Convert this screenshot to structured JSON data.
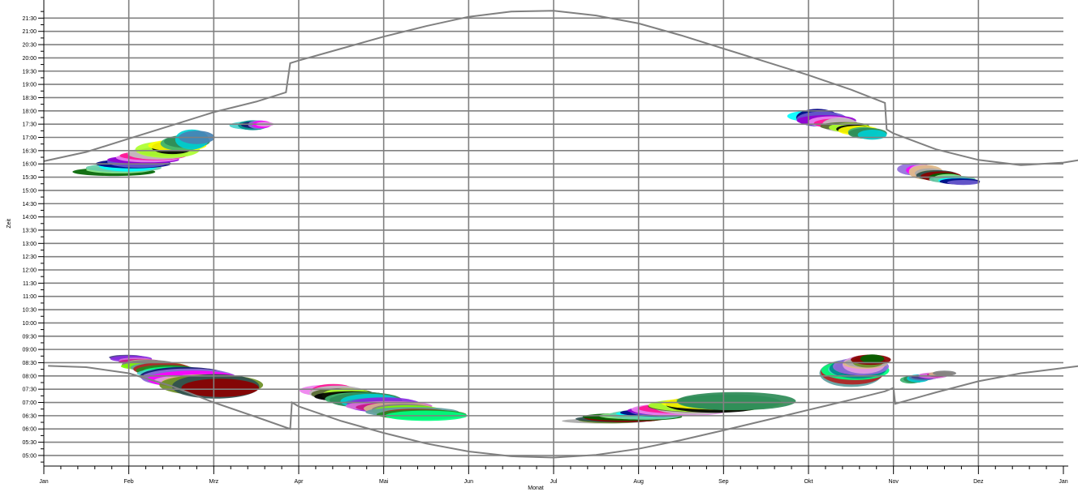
{
  "chart_data": {
    "type": "scatter",
    "title": "",
    "xlabel": "Monat",
    "ylabel": "Zeit",
    "x_ticks": [
      "Jan",
      "Feb",
      "Mrz",
      "Apr",
      "Mai",
      "Jun",
      "Jul",
      "Aug",
      "Sep",
      "Okt",
      "Nov",
      "Dez",
      "Jan"
    ],
    "y_ticks": [
      "05:00",
      "05:30",
      "06:00",
      "06:30",
      "07:00",
      "07:30",
      "08:00",
      "08:30",
      "09:00",
      "09:30",
      "10:00",
      "10:30",
      "11:00",
      "11:30",
      "12:00",
      "12:30",
      "13:00",
      "13:30",
      "14:00",
      "14:30",
      "15:00",
      "15:30",
      "16:00",
      "16:30",
      "17:00",
      "17:30",
      "18:00",
      "18:30",
      "19:00",
      "19:30",
      "20:00",
      "20:30",
      "21:00",
      "21:30"
    ],
    "xlim_months": [
      0,
      12
    ],
    "ylim_hours": [
      4.6,
      22.0
    ],
    "grid": true,
    "legend": "none",
    "grid_color": "#808080",
    "sunrise_line": {
      "name": "",
      "color": "#808080",
      "points": [
        [
          0.05,
          8.38
        ],
        [
          0.5,
          8.33
        ],
        [
          1.0,
          8.1
        ],
        [
          1.5,
          7.62
        ],
        [
          2.0,
          7.0
        ],
        [
          2.5,
          6.45
        ],
        [
          2.9,
          6.0
        ],
        [
          2.92,
          7.0
        ],
        [
          3.0,
          6.85
        ],
        [
          3.5,
          6.3
        ],
        [
          4.0,
          5.85
        ],
        [
          4.5,
          5.45
        ],
        [
          5.0,
          5.15
        ],
        [
          5.5,
          4.97
        ],
        [
          6.0,
          4.92
        ],
        [
          6.5,
          5.02
        ],
        [
          7.0,
          5.25
        ],
        [
          7.5,
          5.58
        ],
        [
          8.0,
          5.95
        ],
        [
          8.5,
          6.33
        ],
        [
          9.0,
          6.72
        ],
        [
          9.5,
          7.1
        ],
        [
          9.9,
          7.42
        ],
        [
          10.0,
          7.55
        ],
        [
          10.02,
          6.95
        ],
        [
          10.5,
          7.38
        ],
        [
          11.0,
          7.8
        ],
        [
          11.5,
          8.1
        ],
        [
          12.0,
          8.3
        ],
        [
          12.2,
          8.38
        ]
      ]
    },
    "sunset_line": {
      "name": "",
      "color": "#808080",
      "points": [
        [
          0.0,
          16.1
        ],
        [
          0.5,
          16.45
        ],
        [
          1.0,
          16.95
        ],
        [
          1.5,
          17.45
        ],
        [
          2.0,
          17.95
        ],
        [
          2.5,
          18.35
        ],
        [
          2.85,
          18.7
        ],
        [
          2.9,
          19.8
        ],
        [
          3.0,
          19.9
        ],
        [
          3.5,
          20.35
        ],
        [
          4.0,
          20.8
        ],
        [
          4.5,
          21.2
        ],
        [
          5.0,
          21.55
        ],
        [
          5.5,
          21.75
        ],
        [
          6.0,
          21.78
        ],
        [
          6.5,
          21.6
        ],
        [
          7.0,
          21.3
        ],
        [
          7.5,
          20.85
        ],
        [
          8.0,
          20.35
        ],
        [
          8.5,
          19.85
        ],
        [
          9.0,
          19.35
        ],
        [
          9.5,
          18.8
        ],
        [
          9.9,
          18.3
        ],
        [
          9.92,
          17.3
        ],
        [
          10.0,
          17.15
        ],
        [
          10.5,
          16.55
        ],
        [
          11.0,
          16.15
        ],
        [
          11.5,
          15.95
        ],
        [
          12.0,
          16.05
        ],
        [
          12.2,
          16.15
        ]
      ]
    },
    "blob_clusters": [
      {
        "name": "",
        "x": [
          0.15,
          1.5
        ],
        "y": [
          15.4,
          16.0
        ],
        "end_x": [
          1.5,
          2.1
        ],
        "end_y": [
          16.4,
          17.6
        ],
        "count": 18
      },
      {
        "name": "",
        "x": [
          2.1,
          2.75
        ],
        "y": [
          17.1,
          17.8
        ],
        "end_x": [
          2.45,
          2.75
        ],
        "end_y": [
          17.3,
          17.7
        ],
        "count": 6
      },
      {
        "name": "",
        "x": [
          0.7,
          1.25
        ],
        "y": [
          8.5,
          8.9
        ],
        "end_x": [
          1.25,
          2.9
        ],
        "end_y": [
          6.8,
          8.3
        ],
        "count": 22
      },
      {
        "name": "",
        "x": [
          2.9,
          3.8
        ],
        "y": [
          7.0,
          7.9
        ],
        "end_x": [
          3.8,
          5.2
        ],
        "end_y": [
          6.0,
          7.0
        ],
        "count": 22
      },
      {
        "name": "",
        "x": [
          5.9,
          7.3
        ],
        "y": [
          6.1,
          6.5
        ],
        "end_x": [
          7.3,
          9.0
        ],
        "end_y": [
          6.5,
          7.6
        ],
        "count": 20
      },
      {
        "name": "",
        "x": [
          9.0,
          10.0
        ],
        "y": [
          7.3,
          8.9
        ],
        "end_x": [
          9.5,
          10.0
        ],
        "end_y": [
          8.3,
          9.0
        ],
        "count": 16
      },
      {
        "name": "",
        "x": [
          10.0,
          10.4
        ],
        "y": [
          7.6,
          8.1
        ],
        "end_x": [
          10.4,
          10.8
        ],
        "end_y": [
          7.9,
          8.3
        ],
        "count": 10
      },
      {
        "name": "",
        "x": [
          8.6,
          9.5
        ],
        "y": [
          17.2,
          18.4
        ],
        "end_x": [
          9.5,
          10.0
        ],
        "end_y": [
          16.8,
          17.4
        ],
        "count": 14
      },
      {
        "name": "",
        "x": [
          10.0,
          10.5
        ],
        "y": [
          15.3,
          16.3
        ],
        "end_x": [
          10.5,
          11.15
        ],
        "end_y": [
          15.1,
          15.5
        ],
        "count": 14
      }
    ],
    "blob_colors": [
      "#006400",
      "#228b22",
      "#3cb371",
      "#90ee90",
      "#00ff7f",
      "#2e8b57",
      "#66cdaa",
      "#48d1cc",
      "#00ced1",
      "#00ffff",
      "#008b8b",
      "#4682b4",
      "#000080",
      "#191970",
      "#483d8b",
      "#6a5acd",
      "#9370db",
      "#8a2be2",
      "#9400d3",
      "#ff00ff",
      "#da70d6",
      "#ee82ee",
      "#dda0dd",
      "#c71585",
      "#ff1493",
      "#deb887",
      "#d2b48c",
      "#c0c0c0",
      "#a9a9a9",
      "#808080",
      "#556b2f",
      "#6b8e23",
      "#7cfc00",
      "#adff2f",
      "#2f4f4f",
      "#5f9ea0",
      "#000000",
      "#8b0000",
      "#b22222",
      "#ffff00"
    ]
  }
}
